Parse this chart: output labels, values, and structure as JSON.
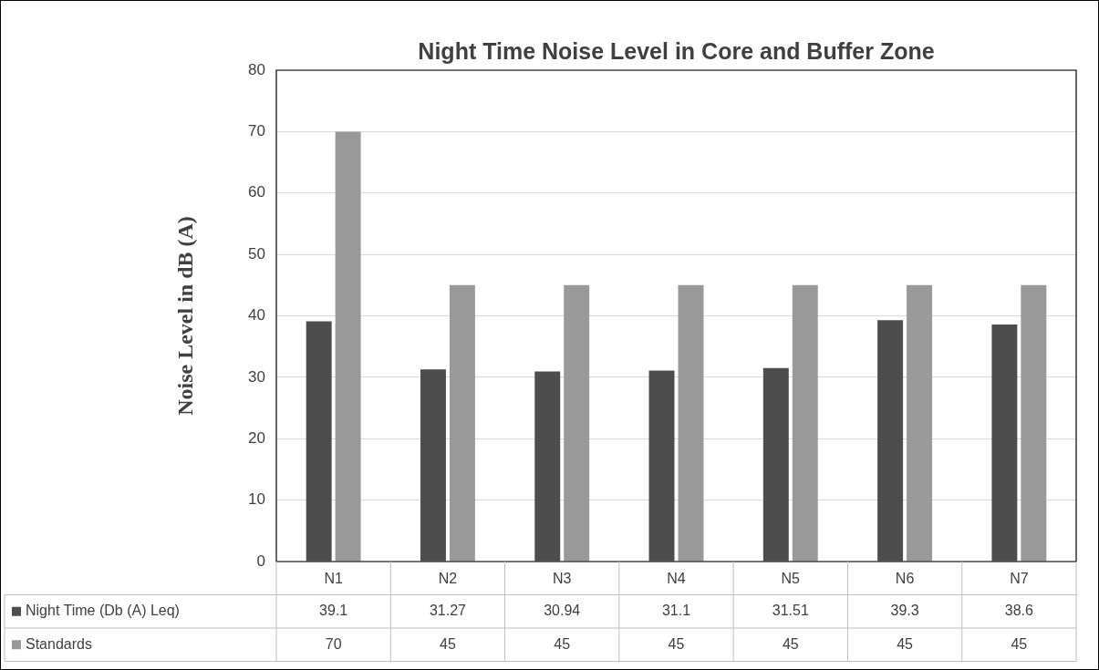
{
  "chart_data": {
    "type": "bar",
    "title": "Night Time Noise Level in Core and Buffer Zone",
    "ylabel": "Noise Level in dB (A)",
    "categories": [
      "N1",
      "N2",
      "N3",
      "N4",
      "N5",
      "N6",
      "N7"
    ],
    "series": [
      {
        "name": "Night Time (Db (A) Leq)",
        "color": "#4d4d4d",
        "values": [
          39.1,
          31.27,
          30.94,
          31.1,
          31.51,
          39.3,
          38.6
        ]
      },
      {
        "name": "Standards",
        "color": "#999999",
        "values": [
          70,
          45,
          45,
          45,
          45,
          45,
          45
        ]
      }
    ],
    "ylim": [
      0,
      80
    ],
    "yticks": [
      0,
      10,
      20,
      30,
      40,
      50,
      60,
      70,
      80
    ],
    "grid": "y",
    "legend": "bottom",
    "data_labels": true
  }
}
